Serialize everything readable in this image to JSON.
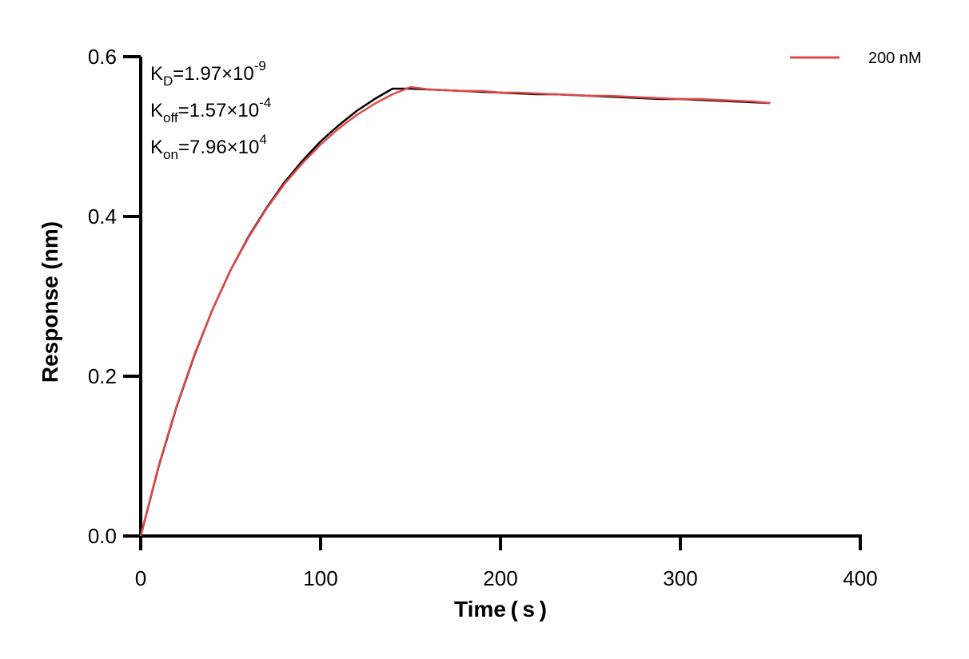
{
  "chart_data": {
    "type": "line",
    "title": "",
    "xlabel": "Time ( s )",
    "ylabel": "Response (nm)",
    "xlim": [
      0,
      400
    ],
    "ylim": [
      0,
      0.6
    ],
    "x_ticks": [
      0,
      100,
      200,
      300,
      400
    ],
    "x_tick_labels": [
      "0",
      "100",
      "200",
      "300",
      "400"
    ],
    "y_ticks": [
      0.0,
      0.2,
      0.4,
      0.6
    ],
    "y_tick_labels": [
      "0.0",
      "0.2",
      "0.4",
      "0.6"
    ],
    "grid": false,
    "legend_position": "top-right",
    "annotations": [
      {
        "base": "K",
        "sub": "D",
        "text": "=1.97×10",
        "sup": "-9"
      },
      {
        "base": "K",
        "sub": "off",
        "text": "=1.57×10",
        "sup": "-4"
      },
      {
        "base": "K",
        "sub": "on",
        "text": "=7.96×10",
        "sup": "4"
      }
    ],
    "series": [
      {
        "name": "200 nM",
        "color": "#e04848",
        "x": [
          0,
          10,
          20,
          30,
          40,
          50,
          60,
          70,
          80,
          90,
          100,
          110,
          120,
          130,
          140,
          150,
          160,
          170,
          180,
          190,
          200,
          210,
          220,
          230,
          240,
          250,
          260,
          270,
          280,
          290,
          300,
          310,
          320,
          330,
          340,
          350
        ],
        "y": [
          0.0,
          0.088,
          0.163,
          0.228,
          0.284,
          0.333,
          0.374,
          0.41,
          0.441,
          0.467,
          0.49,
          0.51,
          0.527,
          0.541,
          0.553,
          0.562,
          0.559,
          0.558,
          0.557,
          0.557,
          0.555,
          0.555,
          0.554,
          0.553,
          0.552,
          0.551,
          0.551,
          0.55,
          0.549,
          0.548,
          0.547,
          0.547,
          0.546,
          0.545,
          0.544,
          0.542
        ]
      },
      {
        "name": "",
        "color": "#000000",
        "x": [
          0,
          10,
          20,
          30,
          40,
          50,
          60,
          70,
          80,
          90,
          100,
          110,
          120,
          130,
          140,
          150,
          160,
          170,
          180,
          190,
          200,
          210,
          220,
          230,
          240,
          250,
          260,
          270,
          280,
          290,
          300,
          310,
          320,
          330,
          340,
          350
        ],
        "y": [
          0.0,
          0.087,
          0.162,
          0.227,
          0.284,
          0.333,
          0.375,
          0.411,
          0.443,
          0.47,
          0.494,
          0.514,
          0.532,
          0.547,
          0.56,
          0.56,
          0.559,
          0.558,
          0.557,
          0.556,
          0.555,
          0.554,
          0.553,
          0.553,
          0.552,
          0.551,
          0.55,
          0.549,
          0.548,
          0.547,
          0.547,
          0.546,
          0.545,
          0.544,
          0.543,
          0.542
        ]
      }
    ]
  }
}
